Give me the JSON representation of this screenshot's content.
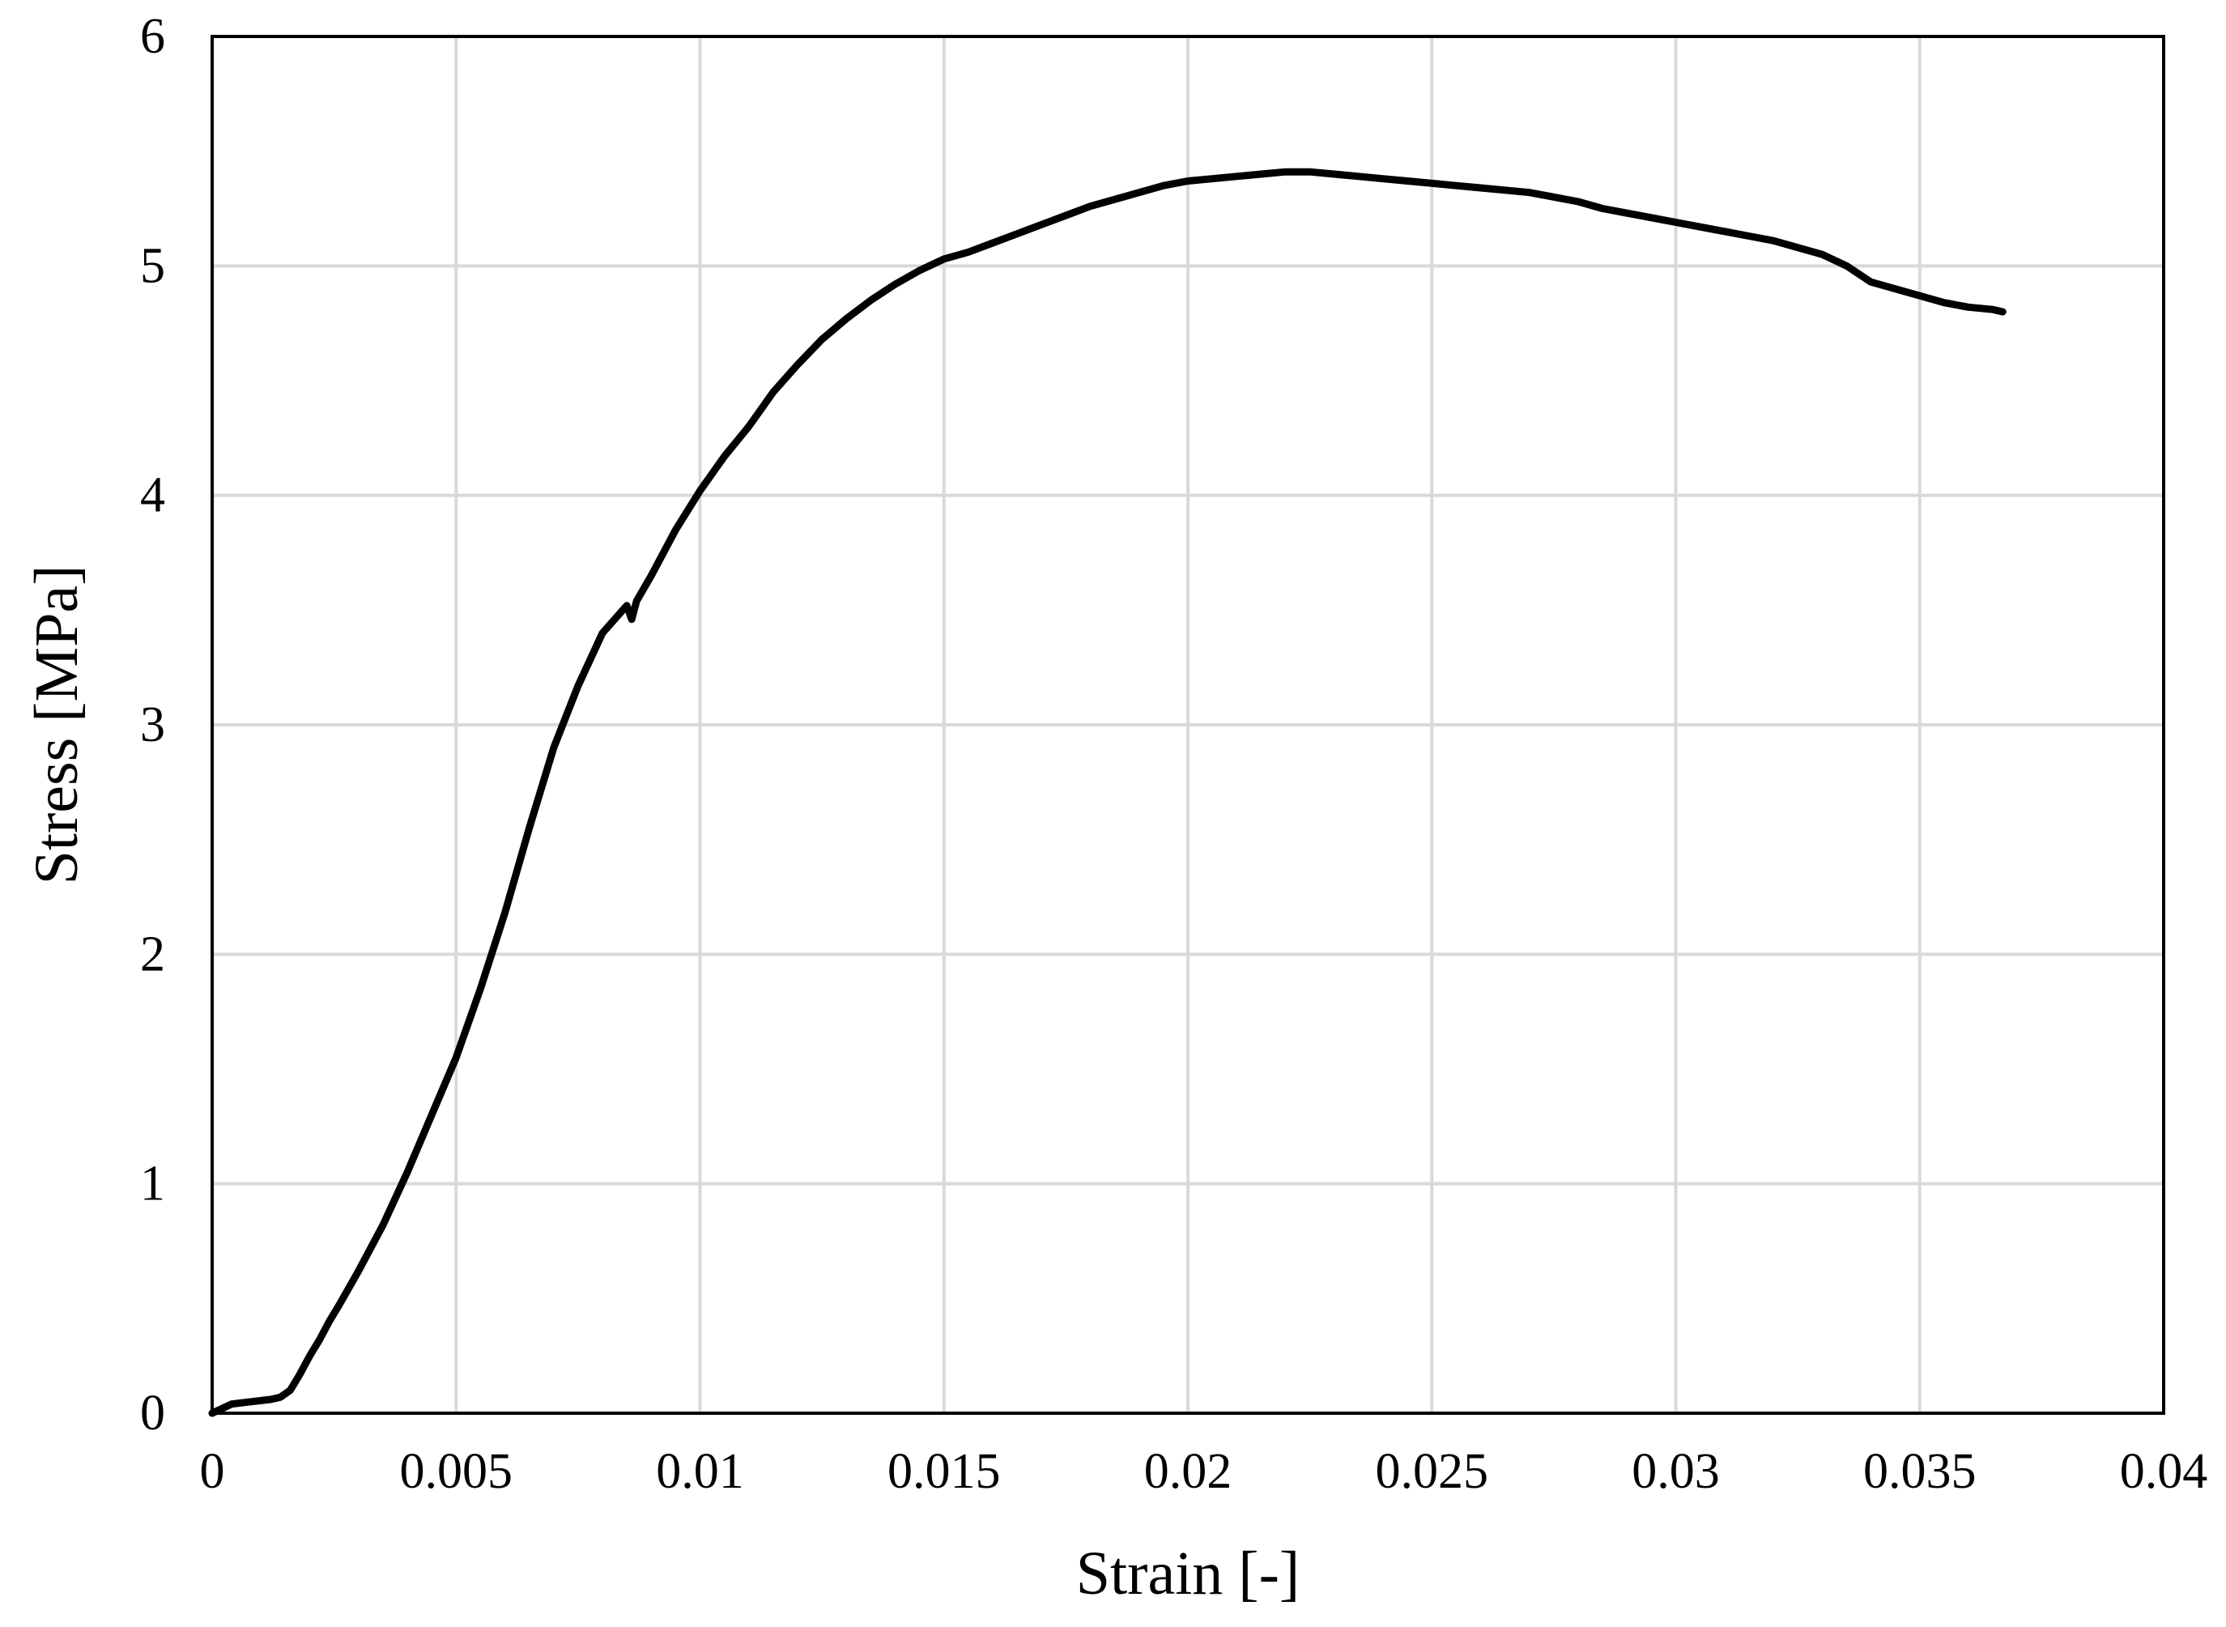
{
  "chart_data": {
    "type": "line",
    "title": "",
    "xlabel": "Strain [-]",
    "ylabel": "Stress [MPa]",
    "xlim": [
      0,
      0.04
    ],
    "ylim": [
      0,
      6
    ],
    "x_ticks": [
      "0",
      "0.005",
      "0.01",
      "0.015",
      "0.02",
      "0.025",
      "0.03",
      "0.035",
      "0.04"
    ],
    "y_ticks": [
      "0",
      "1",
      "2",
      "3",
      "4",
      "5",
      "6"
    ],
    "grid": true,
    "legend": "none",
    "series": [
      {
        "color": "#000000",
        "x": [
          0,
          0.0004,
          0.0008,
          0.0012,
          0.0014,
          0.0016,
          0.0018,
          0.002,
          0.0022,
          0.0024,
          0.0026,
          0.003,
          0.0035,
          0.004,
          0.0045,
          0.005,
          0.0055,
          0.006,
          0.0065,
          0.007,
          0.0075,
          0.008,
          0.0085,
          0.0086,
          0.0087,
          0.009,
          0.0095,
          0.01,
          0.0105,
          0.011,
          0.0115,
          0.012,
          0.0125,
          0.013,
          0.0135,
          0.014,
          0.0145,
          0.015,
          0.0155,
          0.016,
          0.0165,
          0.017,
          0.0175,
          0.018,
          0.0185,
          0.019,
          0.0195,
          0.02,
          0.0205,
          0.021,
          0.0215,
          0.022,
          0.0225,
          0.023,
          0.0235,
          0.024,
          0.0245,
          0.025,
          0.0255,
          0.026,
          0.0265,
          0.027,
          0.0275,
          0.028,
          0.0285,
          0.029,
          0.0295,
          0.03,
          0.0305,
          0.031,
          0.0315,
          0.032,
          0.0325,
          0.033,
          0.0335,
          0.034,
          0.0345,
          0.035,
          0.0355,
          0.036,
          0.0365,
          0.0367
        ],
        "y": [
          0,
          0.04,
          0.05,
          0.06,
          0.07,
          0.1,
          0.17,
          0.25,
          0.32,
          0.4,
          0.47,
          0.62,
          0.82,
          1.05,
          1.3,
          1.55,
          1.85,
          2.18,
          2.55,
          2.9,
          3.17,
          3.4,
          3.52,
          3.46,
          3.54,
          3.65,
          3.85,
          4.02,
          4.17,
          4.3,
          4.45,
          4.57,
          4.68,
          4.77,
          4.85,
          4.92,
          4.98,
          5.03,
          5.06,
          5.1,
          5.14,
          5.18,
          5.22,
          5.26,
          5.29,
          5.32,
          5.35,
          5.37,
          5.38,
          5.39,
          5.4,
          5.41,
          5.41,
          5.4,
          5.39,
          5.38,
          5.37,
          5.36,
          5.35,
          5.34,
          5.33,
          5.32,
          5.3,
          5.28,
          5.25,
          5.23,
          5.21,
          5.19,
          5.17,
          5.15,
          5.13,
          5.11,
          5.08,
          5.05,
          5.0,
          4.93,
          4.9,
          4.87,
          4.84,
          4.82,
          4.81,
          4.8
        ]
      }
    ]
  }
}
